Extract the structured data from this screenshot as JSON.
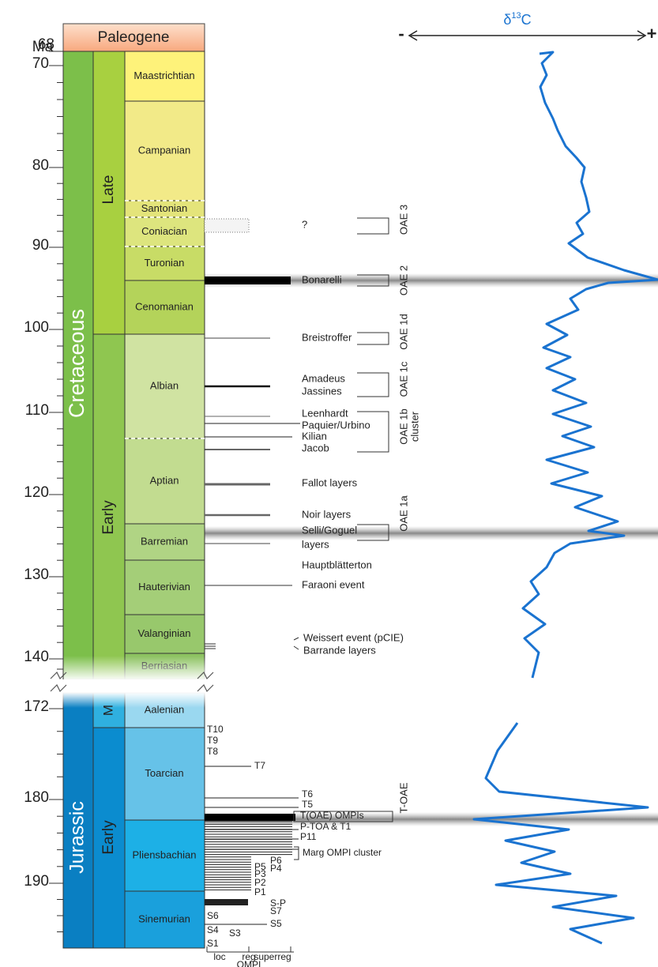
{
  "axis": {
    "label": "Ma",
    "ticks": [
      68,
      70,
      80,
      90,
      100,
      110,
      120,
      130,
      140,
      172,
      180,
      190
    ]
  },
  "header": "Paleogene",
  "periods": [
    "Cretaceous",
    "Jurassic"
  ],
  "epochs": [
    "Late",
    "Early",
    "M",
    "Early"
  ],
  "stages": [
    "Maastrichtian",
    "Campanian",
    "Santonian",
    "Coniacian",
    "Turonian",
    "Cenomanian",
    "Albian",
    "Aptian",
    "Barremian",
    "Hauterivian",
    "Valanginian",
    "Berriasian",
    "Aalenian",
    "Toarcian",
    "Pliensbachian",
    "Sinemurian"
  ],
  "curve_label": {
    "symbol": "δ",
    "superscript": "13",
    "element": "C"
  },
  "scale_ends": [
    "-",
    "+"
  ],
  "events": [
    "?",
    "Bonarelli",
    "Breistroffer",
    "Amadeus",
    "Jassines",
    "Leenhardt",
    "Paquier/Urbino",
    "Kilian",
    "Jacob",
    "Fallot layers",
    "Noir layers",
    "Selli/Goguel",
    "layers",
    "Hauptblätterton",
    "Faraoni event",
    "Weissert event (pCIE)",
    "Barrande layers"
  ],
  "oae": [
    "OAE 3",
    "OAE 2",
    "OAE 1d",
    "OAE 1c",
    "OAE 1b",
    "cluster",
    "OAE 1a",
    "T-OAE"
  ],
  "jurassic_events": [
    "T10",
    "T9",
    "T8",
    "T7",
    "T6",
    "T5",
    "T(OAE) OMPIs",
    "P-TOA & T1",
    "P11",
    "Marg OMPI cluster",
    "P6",
    "P5",
    "P4",
    "P3",
    "P2",
    "P1",
    "S-P",
    "S7",
    "S6",
    "S5",
    "S4",
    "S3",
    "S1"
  ],
  "legend": [
    "loc",
    "reg",
    "superreg",
    "OMPI"
  ]
}
